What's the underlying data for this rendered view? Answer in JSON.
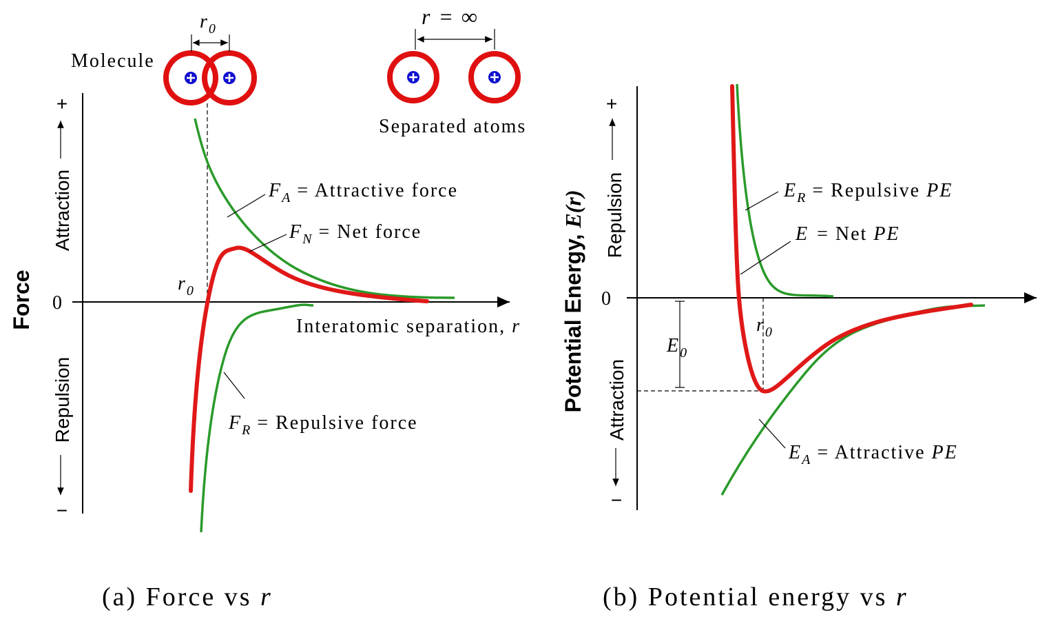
{
  "panel_a": {
    "molecule_label": "Molecule",
    "r0_top": {
      "symbol": "r",
      "sub": "0"
    },
    "infinity_label": "r = ∞",
    "separated_label": "Separated atoms",
    "y_plus": "+",
    "y_minus": "−",
    "attraction": "Attraction",
    "repulsion": "Repulsion",
    "axis_title": "Force",
    "zero": "0",
    "r0_axis": {
      "symbol": "r",
      "sub": "0"
    },
    "fa_label": {
      "symbol": "F",
      "sub": "A",
      "text": "= Attractive force"
    },
    "fn_label": {
      "symbol": "F",
      "sub": "N",
      "text": "= Net force"
    },
    "fr_label": {
      "symbol": "F",
      "sub": "R",
      "text": "= Repulsive force"
    },
    "x_label": {
      "text": "Interatomic separation,",
      "symbol": "r"
    },
    "caption": {
      "text": "(a) Force vs",
      "symbol": "r"
    }
  },
  "panel_b": {
    "axis_title": {
      "text": "Potential Energy,",
      "symbol": "E(r)"
    },
    "y_plus": "+",
    "y_minus": "−",
    "repulsion": "Repulsion",
    "attraction": "Attraction",
    "zero": "0",
    "er_label": {
      "symbol": "E",
      "sub": "R",
      "text": "= Repulsive",
      "unit": "PE"
    },
    "e_label": {
      "symbol": "E",
      "text": "= Net",
      "unit": "PE"
    },
    "ea_label": {
      "symbol": "E",
      "sub": "A",
      "text": "= Attractive",
      "unit": "PE"
    },
    "e0_label": {
      "symbol": "E",
      "sub": "0"
    },
    "r0_label": {
      "symbol": "r",
      "sub": "0"
    },
    "caption": {
      "text": "(b) Potential energy vs",
      "symbol": "r"
    }
  }
}
